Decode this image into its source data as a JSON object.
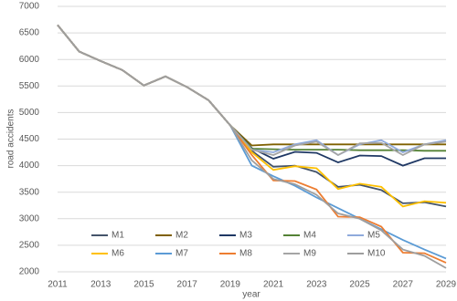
{
  "chart_data": {
    "type": "line",
    "x_label": "year",
    "y_label": "road accidents",
    "x": [
      2011,
      2012,
      2013,
      2014,
      2015,
      2016,
      2017,
      2018,
      2019,
      2020,
      2021,
      2022,
      2023,
      2024,
      2025,
      2026,
      2027,
      2028,
      2029
    ],
    "xlim": [
      2011,
      2029
    ],
    "xticks": [
      2011,
      2013,
      2015,
      2017,
      2019,
      2021,
      2023,
      2025,
      2027,
      2029
    ],
    "ylim": [
      2000,
      7000
    ],
    "yticks": [
      2000,
      2500,
      3000,
      3500,
      4000,
      4500,
      5000,
      5500,
      6000,
      6500,
      7000
    ],
    "grid": true,
    "legend": "bottom",
    "series": [
      {
        "name": "M1",
        "color": "#44546a",
        "values": [
          6650,
          6150,
          5970,
          5800,
          5510,
          5680,
          5480,
          5230,
          4760,
          4280,
          3980,
          4000,
          3880,
          3600,
          3640,
          3540,
          3290,
          3310,
          3230
        ]
      },
      {
        "name": "M2",
        "color": "#7f6000",
        "values": [
          6650,
          6150,
          5970,
          5800,
          5510,
          5680,
          5480,
          5230,
          4760,
          4380,
          4400,
          4400,
          4400,
          4400,
          4400,
          4400,
          4400,
          4400,
          4400
        ]
      },
      {
        "name": "M3",
        "color": "#1f3864",
        "values": [
          6650,
          6150,
          5970,
          5800,
          5510,
          5680,
          5480,
          5230,
          4760,
          4330,
          4130,
          4260,
          4240,
          4060,
          4190,
          4180,
          4000,
          4140,
          4140
        ]
      },
      {
        "name": "M4",
        "color": "#548235",
        "values": [
          6650,
          6150,
          5970,
          5800,
          5510,
          5680,
          5480,
          5230,
          4760,
          4320,
          4310,
          4300,
          4300,
          4300,
          4290,
          4290,
          4290,
          4280,
          4280
        ]
      },
      {
        "name": "M5",
        "color": "#8faadc",
        "values": [
          6650,
          6150,
          5970,
          5800,
          5510,
          5680,
          5480,
          5230,
          4760,
          4300,
          4250,
          4400,
          4480,
          4200,
          4400,
          4480,
          4250,
          4400,
          4480
        ]
      },
      {
        "name": "M6",
        "color": "#ffc000",
        "values": [
          6650,
          6150,
          5970,
          5800,
          5510,
          5680,
          5480,
          5230,
          4760,
          4250,
          3920,
          3990,
          3950,
          3560,
          3660,
          3600,
          3230,
          3330,
          3300
        ]
      },
      {
        "name": "M7",
        "color": "#5b9bd5",
        "values": [
          6650,
          6150,
          5970,
          5800,
          5510,
          5680,
          5480,
          5230,
          4760,
          4000,
          3800,
          3620,
          3400,
          3200,
          3000,
          2800,
          2600,
          2420,
          2250
        ]
      },
      {
        "name": "M8",
        "color": "#ed7d31",
        "values": [
          6650,
          6150,
          5970,
          5800,
          5510,
          5680,
          5480,
          5230,
          4760,
          4200,
          3720,
          3710,
          3550,
          3040,
          3030,
          2850,
          2360,
          2350,
          2170
        ]
      },
      {
        "name": "M9",
        "color": "#a5a5a5",
        "values": [
          6650,
          6150,
          5970,
          5800,
          5510,
          5680,
          5480,
          5230,
          4760,
          4300,
          4200,
          4380,
          4450,
          4200,
          4420,
          4430,
          4200,
          4400,
          4450
        ]
      },
      {
        "name": "M10",
        "color": "#9e9e9e",
        "values": [
          6650,
          6150,
          5970,
          5800,
          5510,
          5680,
          5480,
          5230,
          4760,
          4100,
          3750,
          3650,
          3450,
          3100,
          3000,
          2780,
          2420,
          2300,
          2070
        ]
      }
    ]
  }
}
